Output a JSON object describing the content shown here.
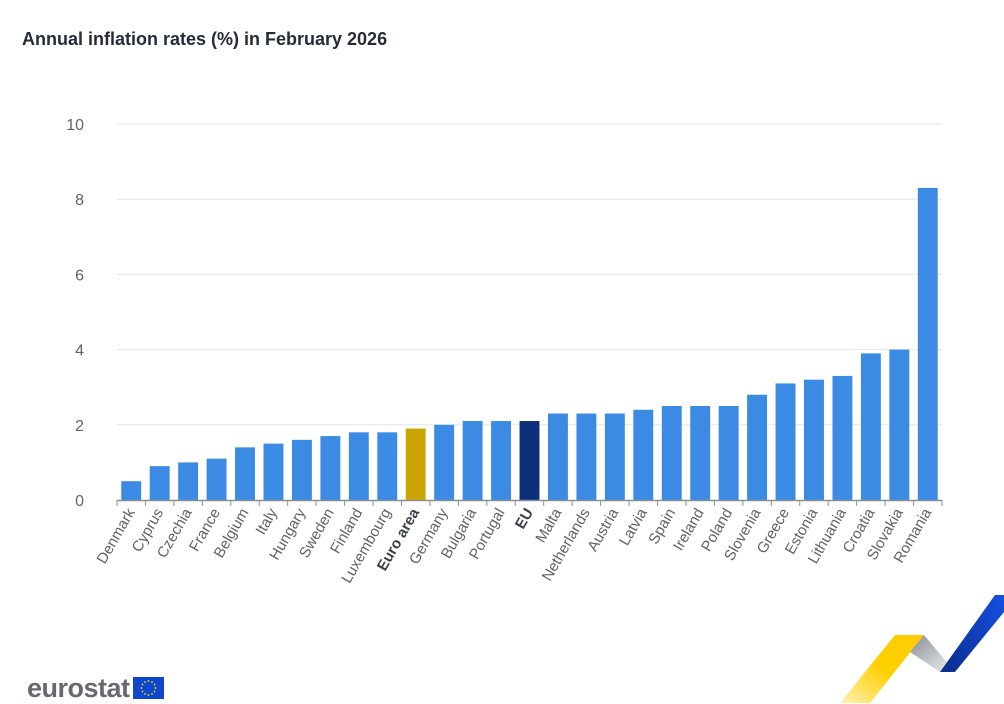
{
  "header": {
    "title": "Annual inflation rates (%) in February 2026"
  },
  "footer": {
    "logo_text": "eurostat",
    "logo_flag_icon": "eu-flag-icon"
  },
  "colors": {
    "country": "#3b8ae3",
    "euro_area": "#cba400",
    "eu": "#0d2f7b",
    "grid": "#e1e6ee",
    "axis": "#8a8f96",
    "text": "#5f6368"
  },
  "chart_data": {
    "type": "bar",
    "title": "Annual inflation rates (%) in February 2026",
    "xlabel": "",
    "ylabel": "",
    "ylim": [
      0,
      10
    ],
    "yticks": [
      0,
      2,
      4,
      6,
      8,
      10
    ],
    "grid": true,
    "categories": [
      "Denmark",
      "Cyprus",
      "Czechia",
      "France",
      "Belgium",
      "Italy",
      "Hungary",
      "Sweden",
      "Finland",
      "Luxembourg",
      "Euro area",
      "Germany",
      "Bulgaria",
      "Portugal",
      "EU",
      "Malta",
      "Netherlands",
      "Austria",
      "Latvia",
      "Spain",
      "Ireland",
      "Poland",
      "Slovenia",
      "Greece",
      "Estonia",
      "Lithuania",
      "Croatia",
      "Slovakia",
      "Romania"
    ],
    "values": [
      0.5,
      0.9,
      1.0,
      1.1,
      1.4,
      1.5,
      1.6,
      1.7,
      1.8,
      1.8,
      1.9,
      2.0,
      2.1,
      2.1,
      2.1,
      2.3,
      2.3,
      2.3,
      2.4,
      2.5,
      2.5,
      2.5,
      2.8,
      3.1,
      3.2,
      3.3,
      3.9,
      4.0,
      8.3
    ],
    "highlight": {
      "Euro area": "euro_area",
      "EU": "eu"
    },
    "bold_labels": [
      "Euro area",
      "EU"
    ]
  }
}
